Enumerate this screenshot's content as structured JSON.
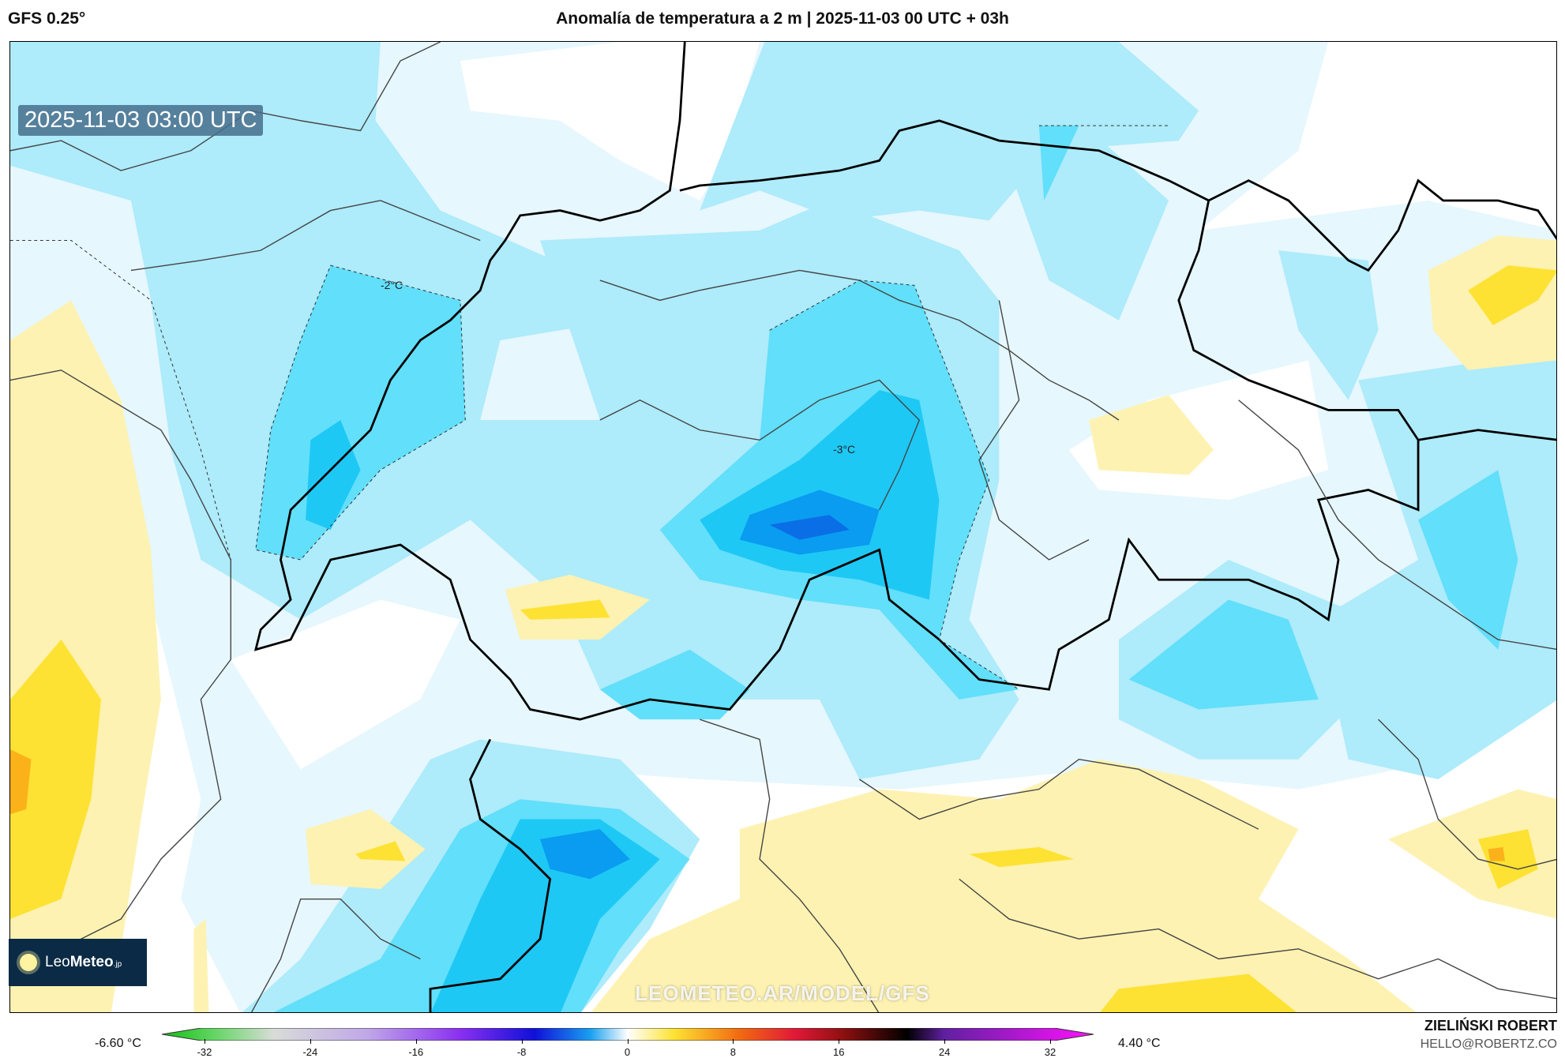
{
  "header": {
    "model": "GFS 0.25°",
    "title": "Anomalía de temperatura a 2 m | 2025-11-03 00 UTC + 03h"
  },
  "map": {
    "timestamp": "2025-11-03 03:00 UTC",
    "contour_labels": [
      "-2°C",
      "-3°C"
    ],
    "watermark": "LEOMETEO.AR/MODEL/GFS",
    "logo": {
      "light": "Leo",
      "bold": "Meteo",
      "suffix": ".jp",
      "icon": "sun-icon"
    },
    "colors": {
      "pale_blue": "#e6f7fd",
      "light_blue": "#aeebfb",
      "mid_blue": "#62dffa",
      "blue": "#1ec8f5",
      "deep_blue": "#0a9cf0",
      "darkest_blue": "#0a6fe6",
      "light_yellow": "#fdf2b2",
      "yellow": "#fde233",
      "orange": "#fbb21a"
    }
  },
  "colorbar": {
    "min_label": "-6.60 °C",
    "max_label": "4.40 °C",
    "ticks": [
      "-32",
      "-24",
      "-16",
      "-8",
      "0",
      "8",
      "16",
      "24",
      "32"
    ],
    "range": [
      -36,
      36
    ]
  },
  "footer": {
    "author": "ZIELIŃSKI ROBERT",
    "email": "HELLO@ROBERTZ.CO"
  }
}
